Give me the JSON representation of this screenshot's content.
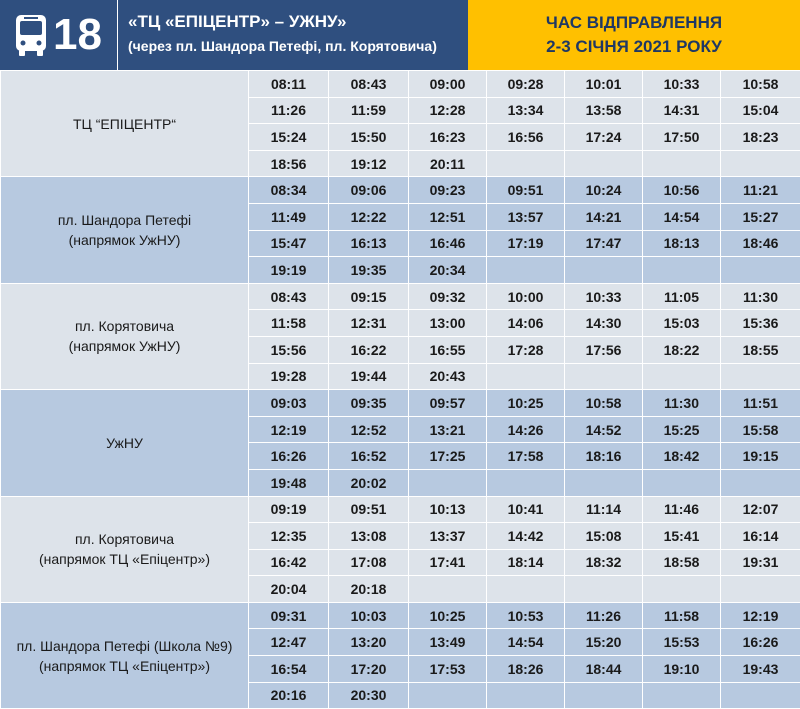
{
  "header": {
    "route_number": "18",
    "route_title": "«ТЦ «ЕПІЦЕНТР» – УЖНУ»",
    "route_via": "(через пл. Шандора Петефі, пл. Корятовича)",
    "departure_line1": "ЧАС ВІДПРАВЛЕННЯ",
    "departure_line2": "2-3 СІЧНЯ 2021 РОКУ",
    "icon": "bus-icon"
  },
  "colors": {
    "header_blue": "#2f4f7f",
    "header_yellow": "#ffc000",
    "row_light": "#dde3ea",
    "row_dark": "#b7c9e0"
  },
  "schedule": [
    {
      "stop_lines": [
        "ТЦ “ЕПІЦЕНТР“"
      ],
      "shade": "light",
      "rows": [
        [
          "08:11",
          "08:43",
          "09:00",
          "09:28",
          "10:01",
          "10:33",
          "10:58"
        ],
        [
          "11:26",
          "11:59",
          "12:28",
          "13:34",
          "13:58",
          "14:31",
          "15:04"
        ],
        [
          "15:24",
          "15:50",
          "16:23",
          "16:56",
          "17:24",
          "17:50",
          "18:23"
        ],
        [
          "18:56",
          "19:12",
          "20:11",
          "",
          "",
          "",
          ""
        ]
      ]
    },
    {
      "stop_lines": [
        "пл. Шандора Петефі",
        "(напрямок УжНУ)"
      ],
      "shade": "dark",
      "rows": [
        [
          "08:34",
          "09:06",
          "09:23",
          "09:51",
          "10:24",
          "10:56",
          "11:21"
        ],
        [
          "11:49",
          "12:22",
          "12:51",
          "13:57",
          "14:21",
          "14:54",
          "15:27"
        ],
        [
          "15:47",
          "16:13",
          "16:46",
          "17:19",
          "17:47",
          "18:13",
          "18:46"
        ],
        [
          "19:19",
          "19:35",
          "20:34",
          "",
          "",
          "",
          ""
        ]
      ]
    },
    {
      "stop_lines": [
        "пл. Корятовича",
        "(напрямок УжНУ)"
      ],
      "shade": "light",
      "rows": [
        [
          "08:43",
          "09:15",
          "09:32",
          "10:00",
          "10:33",
          "11:05",
          "11:30"
        ],
        [
          "11:58",
          "12:31",
          "13:00",
          "14:06",
          "14:30",
          "15:03",
          "15:36"
        ],
        [
          "15:56",
          "16:22",
          "16:55",
          "17:28",
          "17:56",
          "18:22",
          "18:55"
        ],
        [
          "19:28",
          "19:44",
          "20:43",
          "",
          "",
          "",
          ""
        ]
      ]
    },
    {
      "stop_lines": [
        "УжНУ"
      ],
      "shade": "dark",
      "rows": [
        [
          "09:03",
          "09:35",
          "09:57",
          "10:25",
          "10:58",
          "11:30",
          "11:51"
        ],
        [
          "12:19",
          "12:52",
          "13:21",
          "14:26",
          "14:52",
          "15:25",
          "15:58"
        ],
        [
          "16:26",
          "16:52",
          "17:25",
          "17:58",
          "18:16",
          "18:42",
          "19:15"
        ],
        [
          "19:48",
          "20:02",
          "",
          "",
          "",
          "",
          ""
        ]
      ]
    },
    {
      "stop_lines": [
        "пл. Корятовича",
        "(напрямок ТЦ «Епіцентр»)"
      ],
      "shade": "light",
      "rows": [
        [
          "09:19",
          "09:51",
          "10:13",
          "10:41",
          "11:14",
          "11:46",
          "12:07"
        ],
        [
          "12:35",
          "13:08",
          "13:37",
          "14:42",
          "15:08",
          "15:41",
          "16:14"
        ],
        [
          "16:42",
          "17:08",
          "17:41",
          "18:14",
          "18:32",
          "18:58",
          "19:31"
        ],
        [
          "20:04",
          "20:18",
          "",
          "",
          "",
          "",
          ""
        ]
      ]
    },
    {
      "stop_lines": [
        "пл. Шандора Петефі (Школа №9)",
        "(напрямок ТЦ «Епіцентр»)"
      ],
      "shade": "dark",
      "rows": [
        [
          "09:31",
          "10:03",
          "10:25",
          "10:53",
          "11:26",
          "11:58",
          "12:19"
        ],
        [
          "12:47",
          "13:20",
          "13:49",
          "14:54",
          "15:20",
          "15:53",
          "16:26"
        ],
        [
          "16:54",
          "17:20",
          "17:53",
          "18:26",
          "18:44",
          "19:10",
          "19:43"
        ],
        [
          "20:16",
          "20:30",
          "",
          "",
          "",
          "",
          ""
        ]
      ]
    }
  ]
}
